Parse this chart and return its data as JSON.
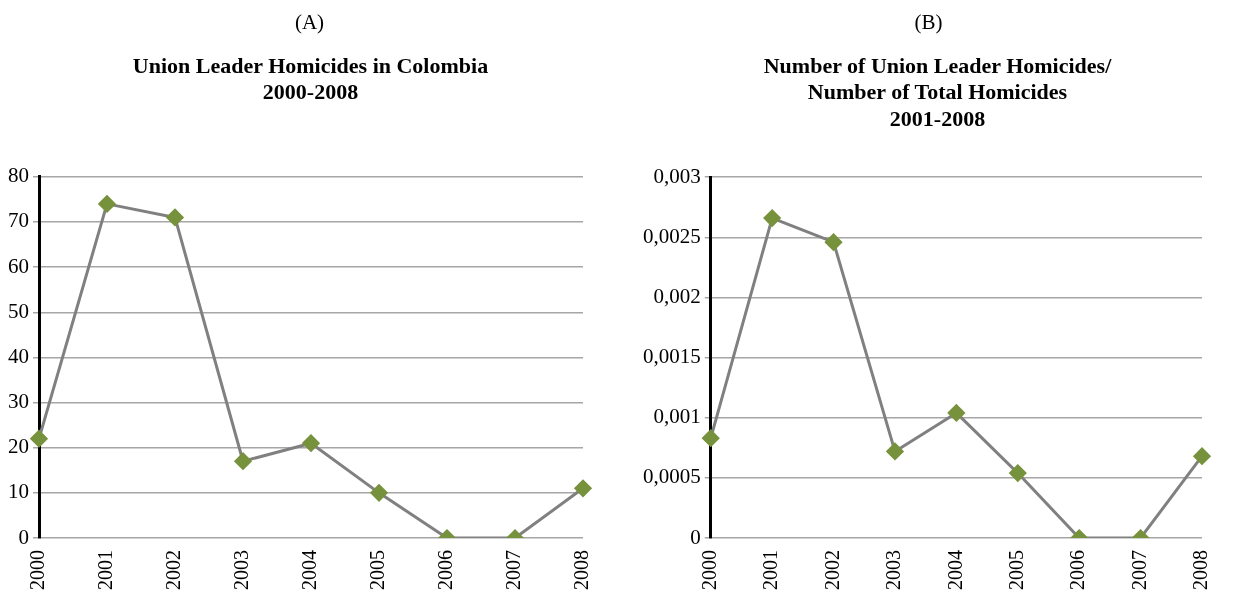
{
  "chart_data": [
    {
      "type": "line",
      "title": "Union Leader Homicides in Colombia\n2000-2008",
      "annotations": [
        "(A)"
      ],
      "categories": [
        "2000",
        "2001",
        "2002",
        "2003",
        "2004",
        "2005",
        "2006",
        "2007",
        "2008"
      ],
      "series": [
        {
          "color": "#808080",
          "colors": [
            "#76923c",
            "#76923c",
            "#76923c",
            "#76923c",
            "#76923c",
            "#76923c",
            "#76923c",
            "#76923c",
            "#76923c"
          ],
          "values": [
            22,
            74,
            71,
            17,
            21,
            10,
            0,
            0,
            11
          ]
        }
      ],
      "ylim": [
        0,
        80
      ],
      "yticks": [
        0,
        10,
        20,
        30,
        40,
        50,
        60,
        70,
        80
      ],
      "grid": "y",
      "marker": "diamond"
    },
    {
      "type": "line",
      "title": "Number of Union Leader Homicides/\nNumber of Total Homicides\n2001-2008",
      "annotations": [
        "(B)"
      ],
      "categories": [
        "2000",
        "2001",
        "2002",
        "2003",
        "2004",
        "2005",
        "2006",
        "2007",
        "2008"
      ],
      "series": [
        {
          "color": "#808080",
          "colors": [
            "#76923c",
            "#76923c",
            "#76923c",
            "#76923c",
            "#76923c",
            "#76923c",
            "#76923c",
            "#76923c",
            "#76923c"
          ],
          "values": [
            0.00083,
            0.00266,
            0.00246,
            0.00072,
            0.00104,
            0.00054,
            0,
            0,
            0.00068
          ]
        }
      ],
      "ylim": [
        0,
        0.003
      ],
      "yticks": [
        0,
        {
          "value": 0.0005,
          "label": "0,0005"
        },
        {
          "value": 0.001,
          "label": "0,001"
        },
        {
          "value": 0.0015,
          "label": "0,0015"
        },
        {
          "value": 0.002,
          "label": "0,002"
        },
        {
          "value": 0.0025,
          "label": "0,0025"
        },
        {
          "value": 0.003,
          "label": "0,003"
        }
      ],
      "grid": "y",
      "marker": "diamond"
    }
  ]
}
